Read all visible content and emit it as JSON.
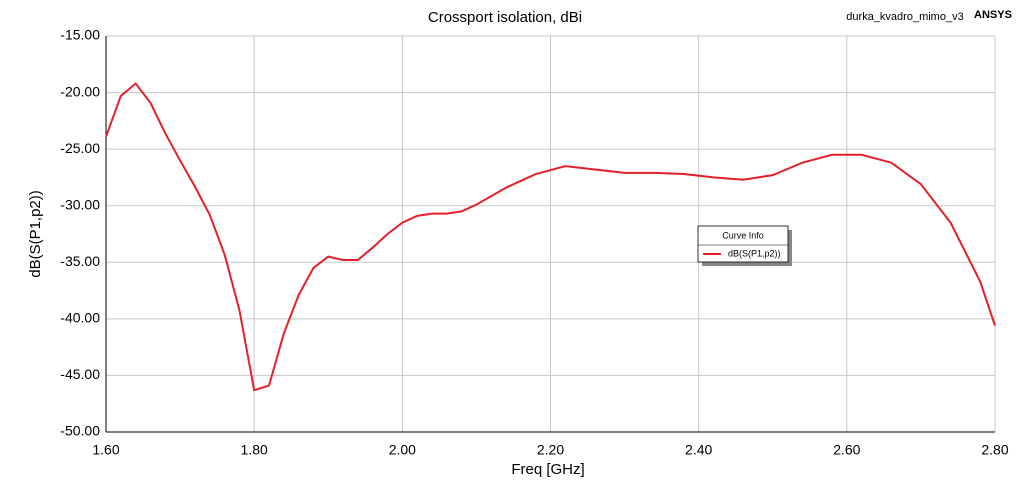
{
  "chart_data": {
    "type": "line",
    "title": "Crossport isolation, dBi",
    "design_name": "durka_kvadro_mimo_v3",
    "vendor": "ANSYS",
    "x_label": "Freq [GHz]",
    "y_label": "dB(S(P1,p2))",
    "legend_title": "Curve Info",
    "x": [
      1.6,
      1.62,
      1.64,
      1.66,
      1.68,
      1.7,
      1.72,
      1.74,
      1.76,
      1.78,
      1.8,
      1.82,
      1.84,
      1.86,
      1.88,
      1.9,
      1.92,
      1.94,
      1.96,
      1.98,
      2.0,
      2.02,
      2.04,
      2.06,
      2.08,
      2.1,
      2.14,
      2.18,
      2.22,
      2.26,
      2.3,
      2.34,
      2.38,
      2.42,
      2.46,
      2.5,
      2.54,
      2.58,
      2.62,
      2.66,
      2.7,
      2.74,
      2.78,
      2.8
    ],
    "series": [
      {
        "name": "dB(S(P1,p2))",
        "color": "#e3202b",
        "values": [
          -23.9,
          -20.3,
          -19.2,
          -20.9,
          -23.6,
          -26.0,
          -28.3,
          -30.8,
          -34.3,
          -39.2,
          -46.3,
          -45.9,
          -41.3,
          -37.9,
          -35.5,
          -34.5,
          -34.8,
          -34.8,
          -33.7,
          -32.5,
          -31.5,
          -30.9,
          -30.7,
          -30.7,
          -30.5,
          -29.9,
          -28.4,
          -27.2,
          -26.5,
          -26.8,
          -27.1,
          -27.1,
          -27.2,
          -27.5,
          -27.7,
          -27.3,
          -26.2,
          -25.5,
          -25.5,
          -26.2,
          -28.1,
          -31.5,
          -36.7,
          -40.6
        ]
      }
    ],
    "xlim": [
      1.6,
      2.8
    ],
    "xticks": [
      {
        "value": 1.6,
        "label": "1.60"
      },
      {
        "value": 1.8,
        "label": "1.80"
      },
      {
        "value": 2.0,
        "label": "2.00"
      },
      {
        "value": 2.2,
        "label": "2.20"
      },
      {
        "value": 2.4,
        "label": "2.40"
      },
      {
        "value": 2.6,
        "label": "2.60"
      },
      {
        "value": 2.8,
        "label": "2.80"
      }
    ],
    "ylim": [
      -50,
      -15
    ],
    "yticks": [
      {
        "value": -15,
        "label": "-15.00"
      },
      {
        "value": -20,
        "label": "-20.00"
      },
      {
        "value": -25,
        "label": "-25.00"
      },
      {
        "value": -30,
        "label": "-30.00"
      },
      {
        "value": -35,
        "label": "-35.00"
      },
      {
        "value": -40,
        "label": "-40.00"
      },
      {
        "value": -45,
        "label": "-45.00"
      },
      {
        "value": -50,
        "label": "-50.00"
      }
    ],
    "grid": true
  }
}
